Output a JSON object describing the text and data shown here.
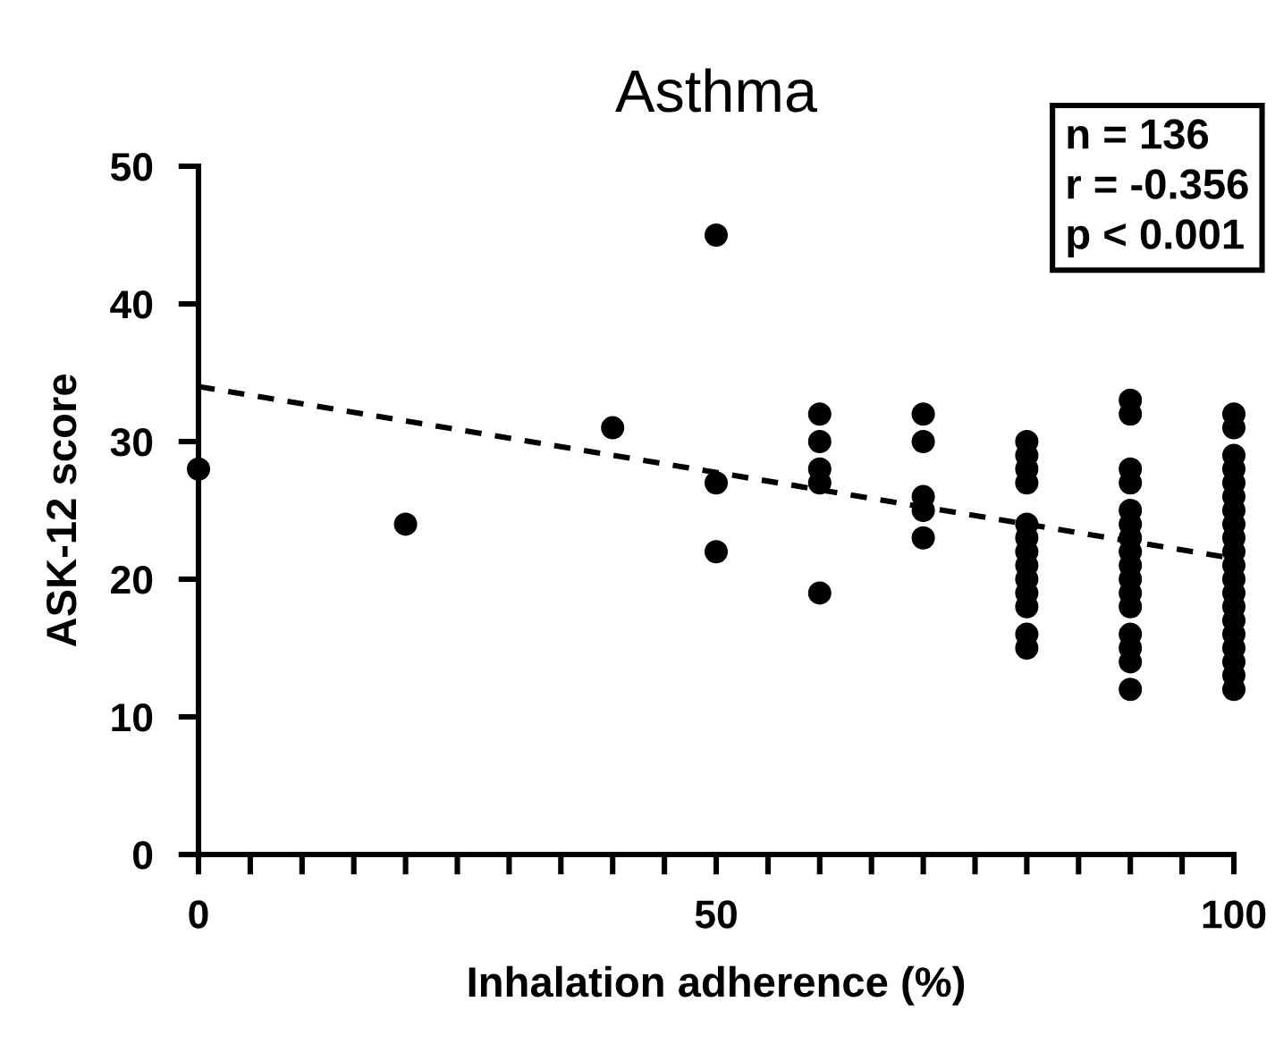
{
  "chart_data": {
    "type": "scatter",
    "title": "Asthma",
    "xlabel": "Inhalation adherence (%)",
    "ylabel": "ASK-12 score",
    "annotations": [
      "n = 136\nr = -0.356\np < 0.001"
    ],
    "series": [
      {
        "color": "#000000",
        "marker": "circle",
        "x": [
          0,
          20,
          40,
          50,
          50,
          50,
          60,
          60,
          60,
          60,
          60,
          70,
          70,
          70,
          70,
          70,
          80,
          80,
          80,
          80,
          80,
          80,
          80,
          80,
          80,
          80,
          80,
          80,
          80,
          90,
          90,
          90,
          90,
          90,
          90,
          90,
          90,
          90,
          90,
          90,
          90,
          90,
          90,
          90,
          90,
          100,
          100,
          100,
          100,
          100,
          100,
          100,
          100,
          100,
          100,
          100,
          100,
          100,
          100,
          100,
          100,
          100,
          100,
          100,
          100
        ],
        "values": [
          28,
          24,
          31,
          45,
          27,
          22,
          32,
          30,
          28,
          27,
          19,
          32,
          30,
          26,
          25,
          23,
          30,
          29,
          28,
          27,
          24,
          23,
          22,
          21,
          20,
          19,
          18,
          16,
          15,
          33,
          32,
          28,
          27,
          25,
          24,
          23,
          22,
          21,
          20,
          19,
          18,
          16,
          15,
          14,
          12,
          32,
          31,
          29,
          28,
          27,
          26,
          25,
          24,
          23,
          22,
          21,
          20,
          19,
          18,
          17,
          16,
          15,
          14,
          13,
          12
        ]
      },
      {
        "type": "line",
        "color": "#000000",
        "line_style": "dashed",
        "marker": "none",
        "x": [
          0,
          100
        ],
        "values": [
          34,
          21.5
        ]
      }
    ],
    "xlim": [
      0,
      100
    ],
    "ylim": [
      0,
      50
    ],
    "xticks": [
      0,
      {
        "value": 5,
        "label": null
      },
      {
        "value": 10,
        "label": null
      },
      {
        "value": 15,
        "label": null
      },
      {
        "value": 20,
        "label": null
      },
      {
        "value": 25,
        "label": null
      },
      {
        "value": 30,
        "label": null
      },
      {
        "value": 35,
        "label": null
      },
      {
        "value": 40,
        "label": null
      },
      {
        "value": 45,
        "label": null
      },
      50,
      {
        "value": 55,
        "label": null
      },
      {
        "value": 60,
        "label": null
      },
      {
        "value": 65,
        "label": null
      },
      {
        "value": 70,
        "label": null
      },
      {
        "value": 75,
        "label": null
      },
      {
        "value": 80,
        "label": null
      },
      {
        "value": 85,
        "label": null
      },
      {
        "value": 90,
        "label": null
      },
      {
        "value": 95,
        "label": null
      },
      100
    ],
    "yticks": [
      0,
      10,
      20,
      30,
      40,
      50
    ],
    "grid": false,
    "legend": false
  }
}
